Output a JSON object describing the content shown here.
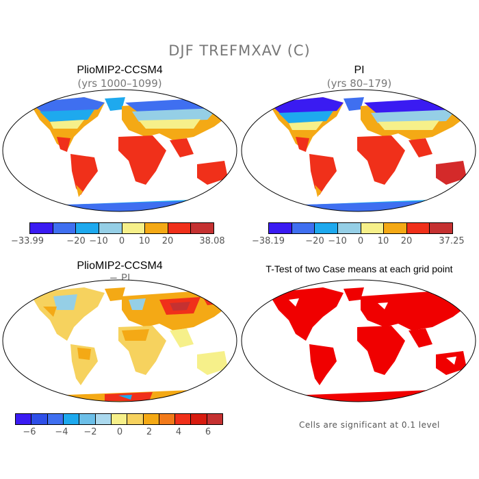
{
  "main_title": "DJF TREFMXAV (C)",
  "panels": [
    {
      "title": "PlioMIP2-CCSM4",
      "subtitle": "(yrs 1000–1099)",
      "colorbar": {
        "colors": [
          "#3a1bf2",
          "#3f6ff0",
          "#1ea9ee",
          "#95cfe6",
          "#f6f08a",
          "#f4a915",
          "#f0301a",
          "#c53131"
        ],
        "ticks": [
          "−33.99",
          "−20",
          "−10",
          "0",
          "10",
          "20",
          "38.08"
        ]
      }
    },
    {
      "title": "PI",
      "subtitle": "(yrs 80–179)",
      "colorbar": {
        "colors": [
          "#3a1bf2",
          "#3f6ff0",
          "#1ea9ee",
          "#95cfe6",
          "#f6f08a",
          "#f4a915",
          "#f0301a",
          "#c53131"
        ],
        "ticks": [
          "−38.19",
          "−20",
          "−10",
          "0",
          "10",
          "20",
          "37.25"
        ]
      }
    },
    {
      "title": "PlioMIP2-CCSM4",
      "subtitle": "− PI",
      "colorbar": {
        "colors": [
          "#3a1bf2",
          "#2e4fe8",
          "#3f6ff0",
          "#1ea9ee",
          "#6cbfe8",
          "#abd9ee",
          "#f6f08a",
          "#f6d25e",
          "#f4a915",
          "#f27a1a",
          "#f0301a",
          "#d81c10",
          "#c53131"
        ],
        "ticks": [
          "−6",
          "−4",
          "−2",
          "0",
          "2",
          "4",
          "6"
        ]
      }
    },
    {
      "title": "T-Test of two Case means at each grid point",
      "note": "Cells are significant at 0.1 level"
    }
  ]
}
